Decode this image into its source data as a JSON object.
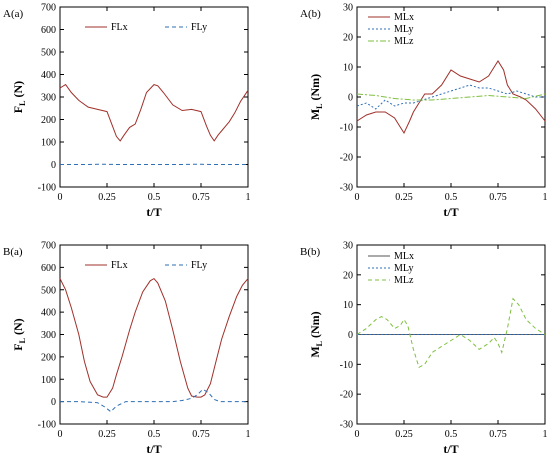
{
  "colors": {
    "x": "#a0302a",
    "y": "#2f6fb6",
    "z": "#7fbf3f",
    "axis": "#000000",
    "zero": "#555555"
  },
  "chart_data": [
    {
      "id": "Aa",
      "type": "line",
      "panel_label": "A(a)",
      "xlabel": "t/T",
      "ylabel_main": "F",
      "ylabel_sub": "L",
      "ylabel_unit": " (N)",
      "ylim": [
        -100,
        700
      ],
      "yticks": [
        -100,
        0,
        100,
        200,
        300,
        400,
        500,
        600,
        700
      ],
      "xlim": [
        0,
        1
      ],
      "xticks": [
        0,
        0.25,
        0.5,
        0.75,
        1
      ],
      "xtick_labels": [
        "0",
        "0.25",
        "0.5",
        "0.75",
        "1"
      ],
      "legend": "top",
      "series": [
        {
          "name": "FLx",
          "style": "solid",
          "color_key": "x",
          "x": [
            0,
            0.03,
            0.06,
            0.1,
            0.15,
            0.2,
            0.25,
            0.28,
            0.3,
            0.32,
            0.34,
            0.37,
            0.4,
            0.43,
            0.46,
            0.5,
            0.52,
            0.55,
            0.6,
            0.65,
            0.7,
            0.75,
            0.78,
            0.8,
            0.82,
            0.84,
            0.87,
            0.9,
            0.93,
            0.96,
            1
          ],
          "y": [
            340,
            355,
            320,
            285,
            255,
            245,
            235,
            170,
            125,
            105,
            130,
            165,
            180,
            245,
            320,
            355,
            350,
            320,
            265,
            240,
            245,
            235,
            170,
            130,
            105,
            130,
            160,
            190,
            230,
            280,
            330
          ]
        },
        {
          "name": "FLy",
          "style": "dashed",
          "color_key": "y",
          "x": [
            0,
            0.1,
            0.15,
            0.2,
            0.25,
            0.3,
            0.35,
            0.4,
            0.45,
            0.5,
            0.6,
            0.65,
            0.7,
            0.75,
            0.8,
            0.85,
            0.9,
            1
          ],
          "y": [
            0,
            0,
            0,
            1,
            1,
            0,
            0,
            0,
            0,
            0,
            0,
            0,
            1,
            1,
            0,
            0,
            0,
            0
          ]
        }
      ]
    },
    {
      "id": "Ab",
      "type": "line",
      "panel_label": "A(b)",
      "xlabel": "t/T",
      "ylabel_main": "M",
      "ylabel_sub": "L",
      "ylabel_unit": " (Nm)",
      "ylim": [
        -30,
        30
      ],
      "yticks": [
        -30,
        -20,
        -10,
        0,
        10,
        20,
        30
      ],
      "xlim": [
        0,
        1
      ],
      "xticks": [
        0,
        0.25,
        0.5,
        0.75,
        1
      ],
      "xtick_labels": [
        "0",
        "0.25",
        "0.5",
        "0.75",
        "1"
      ],
      "legend": "top-left",
      "series": [
        {
          "name": "MLx",
          "style": "solid",
          "color_key": "x",
          "x": [
            0,
            0.05,
            0.1,
            0.15,
            0.2,
            0.23,
            0.25,
            0.28,
            0.3,
            0.33,
            0.36,
            0.4,
            0.45,
            0.5,
            0.55,
            0.6,
            0.65,
            0.7,
            0.73,
            0.75,
            0.78,
            0.8,
            0.83,
            0.87,
            0.9,
            0.95,
            1
          ],
          "y": [
            -8,
            -6,
            -5,
            -5,
            -7,
            -10,
            -12,
            -8,
            -5,
            -2,
            1,
            1,
            4,
            9,
            7,
            6,
            5,
            7,
            10,
            12,
            9,
            4,
            1,
            0,
            -1,
            -4,
            -8
          ]
        },
        {
          "name": "MLy",
          "style": "dotted",
          "color_key": "y",
          "x": [
            0,
            0.05,
            0.1,
            0.15,
            0.2,
            0.25,
            0.3,
            0.35,
            0.4,
            0.45,
            0.5,
            0.55,
            0.6,
            0.65,
            0.7,
            0.75,
            0.8,
            0.85,
            0.9,
            0.95,
            1
          ],
          "y": [
            -3,
            -2,
            -4,
            -1,
            -3,
            -2,
            -2,
            -1,
            0,
            1,
            2,
            3,
            4,
            3,
            3,
            2,
            1,
            2,
            1,
            0,
            0
          ]
        },
        {
          "name": "MLz",
          "style": "dashdot",
          "color_key": "z",
          "x": [
            0,
            0.1,
            0.2,
            0.3,
            0.4,
            0.5,
            0.6,
            0.7,
            0.8,
            0.9,
            1
          ],
          "y": [
            1,
            0.5,
            -0.5,
            -1,
            -1,
            -0.5,
            0,
            0.5,
            0,
            -0.5,
            1
          ]
        }
      ]
    },
    {
      "id": "Ba",
      "type": "line",
      "panel_label": "B(a)",
      "xlabel": "t/T",
      "ylabel_main": "F",
      "ylabel_sub": "L",
      "ylabel_unit": " (N)",
      "ylim": [
        -100,
        700
      ],
      "yticks": [
        -100,
        0,
        100,
        200,
        300,
        400,
        500,
        600,
        700
      ],
      "xlim": [
        0,
        1
      ],
      "xticks": [
        0,
        0.25,
        0.5,
        0.75,
        1
      ],
      "xtick_labels": [
        "0",
        "0.25",
        "0.5",
        "0.75",
        "1"
      ],
      "legend": "top",
      "series": [
        {
          "name": "FLx",
          "style": "solid",
          "color_key": "x",
          "x": [
            0,
            0.03,
            0.06,
            0.1,
            0.13,
            0.16,
            0.2,
            0.23,
            0.25,
            0.28,
            0.3,
            0.33,
            0.37,
            0.4,
            0.44,
            0.48,
            0.5,
            0.52,
            0.56,
            0.6,
            0.64,
            0.68,
            0.7,
            0.73,
            0.75,
            0.77,
            0.8,
            0.83,
            0.86,
            0.9,
            0.94,
            0.97,
            1
          ],
          "y": [
            550,
            500,
            420,
            300,
            180,
            90,
            30,
            20,
            20,
            60,
            120,
            200,
            320,
            400,
            490,
            540,
            550,
            530,
            450,
            320,
            180,
            60,
            25,
            20,
            20,
            30,
            80,
            180,
            280,
            380,
            470,
            520,
            550
          ]
        },
        {
          "name": "FLy",
          "style": "dashed",
          "color_key": "y",
          "x": [
            0,
            0.1,
            0.2,
            0.24,
            0.27,
            0.3,
            0.35,
            0.4,
            0.5,
            0.6,
            0.65,
            0.7,
            0.73,
            0.76,
            0.79,
            0.82,
            0.85,
            0.9,
            1
          ],
          "y": [
            0,
            0,
            -5,
            -25,
            -45,
            -20,
            0,
            0,
            0,
            0,
            5,
            15,
            30,
            55,
            40,
            10,
            0,
            0,
            0
          ]
        }
      ]
    },
    {
      "id": "Bb",
      "type": "line",
      "panel_label": "B(b)",
      "xlabel": "t/T",
      "ylabel_main": "M",
      "ylabel_sub": "L",
      "ylabel_unit": " (Nm)",
      "ylim": [
        -30,
        30
      ],
      "yticks": [
        -30,
        -20,
        -10,
        0,
        10,
        20,
        30
      ],
      "xlim": [
        0,
        1
      ],
      "xticks": [
        0,
        0.25,
        0.5,
        0.75,
        1
      ],
      "xtick_labels": [
        "0",
        "0.25",
        "0.5",
        "0.75",
        "1"
      ],
      "legend": "top-right",
      "series": [
        {
          "name": "MLx",
          "style": "solid",
          "color_key": "zero",
          "x": [
            0,
            1
          ],
          "y": [
            0,
            0
          ]
        },
        {
          "name": "MLy",
          "style": "dotted",
          "color_key": "y",
          "x": [
            0,
            1
          ],
          "y": [
            0,
            0
          ]
        },
        {
          "name": "MLz",
          "style": "dashed",
          "color_key": "z",
          "x": [
            0,
            0.05,
            0.1,
            0.13,
            0.16,
            0.2,
            0.23,
            0.25,
            0.27,
            0.3,
            0.33,
            0.36,
            0.4,
            0.45,
            0.5,
            0.55,
            0.6,
            0.65,
            0.7,
            0.73,
            0.75,
            0.77,
            0.8,
            0.83,
            0.86,
            0.9,
            0.95,
            1
          ],
          "y": [
            0,
            2,
            5,
            6,
            5,
            2,
            3,
            5,
            3,
            -5,
            -11,
            -10,
            -6,
            -4,
            -2,
            0,
            -2,
            -5,
            -3,
            -1,
            -3,
            -6,
            2,
            12,
            10,
            5,
            2,
            0
          ]
        }
      ]
    }
  ]
}
